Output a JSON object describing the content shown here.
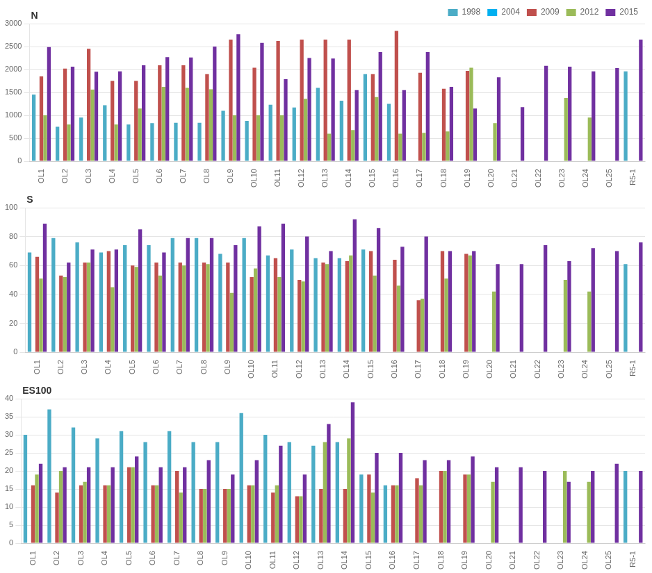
{
  "chart_data": [
    {
      "type": "bar",
      "annotations": [
        "N"
      ],
      "categories": [
        "OL1",
        "OL2",
        "OL3",
        "OL4",
        "OL5",
        "OL6",
        "OL7",
        "OL8",
        "OL9",
        "OL10",
        "OL11",
        "OL12",
        "OL13",
        "OL14",
        "OL15",
        "OL16",
        "OL17",
        "OL18",
        "OL19",
        "OL20",
        "OL21",
        "OL22",
        "OL23",
        "OL24",
        "OL25",
        "R5-1"
      ],
      "series": [
        {
          "name": "1998",
          "color": "#4BACC6",
          "values": [
            1450,
            750,
            950,
            1220,
            800,
            830,
            840,
            840,
            1100,
            880,
            1230,
            1170,
            1600,
            1320,
            1900,
            1250,
            null,
            null,
            null,
            null,
            null,
            null,
            null,
            null,
            null,
            1960
          ]
        },
        {
          "name": "2004",
          "color": "#00B0F0",
          "values": [
            null,
            null,
            null,
            null,
            null,
            null,
            null,
            null,
            null,
            null,
            null,
            null,
            null,
            null,
            null,
            null,
            null,
            null,
            null,
            null,
            null,
            null,
            null,
            null,
            null,
            null
          ]
        },
        {
          "name": "2009",
          "color": "#C0504D",
          "values": [
            1850,
            2020,
            2450,
            1750,
            1750,
            2090,
            2090,
            1900,
            2650,
            2040,
            2620,
            2650,
            2650,
            2650,
            1900,
            2840,
            1930,
            1580,
            1970,
            null,
            null,
            null,
            null,
            null,
            null,
            null
          ]
        },
        {
          "name": "2012",
          "color": "#9BBB59",
          "values": [
            1000,
            800,
            1560,
            800,
            1150,
            1620,
            1600,
            1570,
            1000,
            1000,
            1000,
            1360,
            600,
            680,
            1400,
            600,
            620,
            650,
            2040,
            830,
            null,
            null,
            1380,
            950,
            null,
            null
          ]
        },
        {
          "name": "2015",
          "color": "#7030A0",
          "values": [
            2490,
            2060,
            1950,
            1960,
            2090,
            2270,
            2260,
            2500,
            2770,
            2580,
            1790,
            2250,
            2240,
            1550,
            2380,
            1550,
            2380,
            1620,
            1150,
            1830,
            1180,
            2080,
            2060,
            1960,
            2030,
            2650
          ]
        }
      ],
      "ylim": [
        0,
        3000
      ],
      "yticks": [
        0,
        500,
        1000,
        1500,
        2000,
        2500,
        3000
      ],
      "grid": true,
      "legend": "upper right"
    },
    {
      "type": "bar",
      "annotations": [
        "S"
      ],
      "categories": [
        "OL1",
        "OL2",
        "OL3",
        "OL4",
        "OL5",
        "OL6",
        "OL7",
        "OL8",
        "OL9",
        "OL10",
        "OL11",
        "OL12",
        "OL13",
        "OL14",
        "OL15",
        "OL16",
        "OL17",
        "OL18",
        "OL19",
        "OL20",
        "OL21",
        "OL22",
        "OL23",
        "OL24",
        "OL25",
        "R5-1"
      ],
      "series": [
        {
          "name": "1998",
          "color": "#4BACC6",
          "values": [
            69,
            79,
            76,
            69,
            74,
            74,
            79,
            79,
            68,
            79,
            67,
            71,
            65,
            65,
            71,
            null,
            null,
            null,
            null,
            null,
            null,
            null,
            null,
            null,
            null,
            61
          ]
        },
        {
          "name": "2004",
          "color": "#00B0F0",
          "values": [
            null,
            null,
            null,
            null,
            null,
            null,
            null,
            null,
            null,
            null,
            null,
            null,
            null,
            null,
            null,
            null,
            null,
            null,
            null,
            null,
            null,
            null,
            null,
            null,
            null,
            null
          ]
        },
        {
          "name": "2009",
          "color": "#C0504D",
          "values": [
            66,
            53,
            62,
            70,
            60,
            62,
            62,
            62,
            62,
            52,
            65,
            50,
            62,
            63,
            70,
            64,
            36,
            70,
            68,
            null,
            null,
            null,
            null,
            null,
            null,
            null
          ]
        },
        {
          "name": "2012",
          "color": "#9BBB59",
          "values": [
            51,
            52,
            62,
            45,
            59,
            53,
            60,
            61,
            41,
            58,
            52,
            49,
            61,
            67,
            53,
            46,
            37,
            51,
            67,
            42,
            null,
            null,
            50,
            42,
            null,
            null
          ]
        },
        {
          "name": "2015",
          "color": "#7030A0",
          "values": [
            89,
            62,
            71,
            71,
            85,
            69,
            79,
            79,
            74,
            87,
            89,
            80,
            70,
            92,
            86,
            73,
            80,
            70,
            70,
            61,
            61,
            74,
            63,
            72,
            70,
            76
          ]
        }
      ],
      "ylim": [
        0,
        100
      ],
      "yticks": [
        0,
        20,
        40,
        60,
        80,
        100
      ],
      "grid": true
    },
    {
      "type": "bar",
      "annotations": [
        "ES100"
      ],
      "categories": [
        "OL1",
        "OL2",
        "OL3",
        "OL4",
        "OL5",
        "OL6",
        "OL7",
        "OL8",
        "OL9",
        "OL10",
        "OL11",
        "OL12",
        "OL13",
        "OL14",
        "OL15",
        "OL16",
        "OL17",
        "OL18",
        "OL19",
        "OL20",
        "OL21",
        "OL22",
        "OL23",
        "OL24",
        "OL25",
        "R5-1"
      ],
      "series": [
        {
          "name": "1998",
          "color": "#4BACC6",
          "values": [
            30,
            37,
            32,
            29,
            31,
            28,
            31,
            28,
            28,
            36,
            30,
            28,
            27,
            28,
            19,
            16,
            null,
            null,
            null,
            null,
            null,
            null,
            null,
            null,
            null,
            20
          ]
        },
        {
          "name": "2004",
          "color": "#00B0F0",
          "values": [
            null,
            null,
            null,
            null,
            null,
            null,
            null,
            null,
            null,
            null,
            null,
            null,
            null,
            null,
            null,
            null,
            null,
            null,
            null,
            null,
            null,
            null,
            null,
            null,
            null,
            null
          ]
        },
        {
          "name": "2009",
          "color": "#C0504D",
          "values": [
            16,
            14,
            16,
            16,
            21,
            16,
            20,
            15,
            15,
            16,
            14,
            13,
            15,
            15,
            19,
            16,
            18,
            20,
            19,
            null,
            null,
            null,
            null,
            null,
            null,
            null
          ]
        },
        {
          "name": "2012",
          "color": "#9BBB59",
          "values": [
            19,
            20,
            17,
            16,
            21,
            16,
            14,
            15,
            15,
            16,
            16,
            13,
            28,
            29,
            14,
            16,
            16,
            20,
            19,
            17,
            null,
            null,
            20,
            17,
            null,
            null
          ]
        },
        {
          "name": "2015",
          "color": "#7030A0",
          "values": [
            22,
            21,
            21,
            21,
            24,
            21,
            21,
            23,
            19,
            23,
            27,
            19,
            33,
            39,
            25,
            25,
            23,
            23,
            24,
            21,
            21,
            20,
            17,
            20,
            22,
            20
          ]
        }
      ],
      "ylim": [
        0,
        40
      ],
      "yticks": [
        0,
        5,
        10,
        15,
        20,
        25,
        30,
        35,
        40
      ],
      "grid": true
    }
  ]
}
